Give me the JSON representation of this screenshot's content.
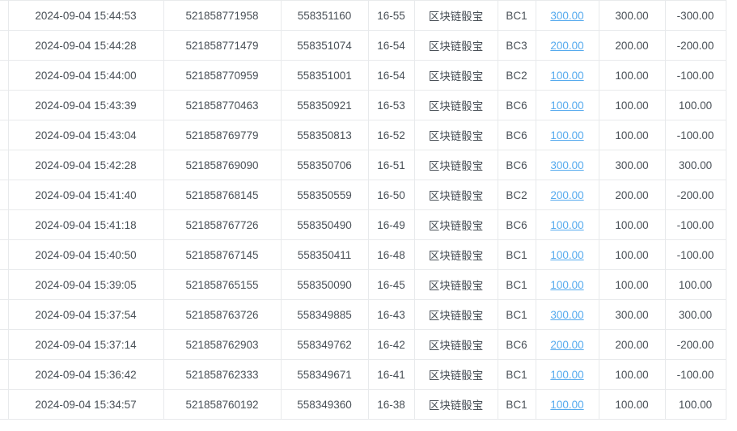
{
  "colors": {
    "link_blue": "#55aaee",
    "loss_red": "#f05a5a",
    "text_dark": "#495057",
    "row_border": "#e8eaec"
  },
  "table": {
    "rows": [
      {
        "time": "2024-09-04 15:44:53",
        "order_number": "521858771958",
        "round_number": "558351160",
        "period": "16-55",
        "game": "区块链骰宝",
        "bet_option": "BC1",
        "bet_amount": "300.00",
        "valid_amount": "300.00",
        "profit": "-300.00",
        "profit_sign": "negative"
      },
      {
        "time": "2024-09-04 15:44:28",
        "order_number": "521858771479",
        "round_number": "558351074",
        "period": "16-54",
        "game": "区块链骰宝",
        "bet_option": "BC3",
        "bet_amount": "200.00",
        "valid_amount": "200.00",
        "profit": "-200.00",
        "profit_sign": "negative"
      },
      {
        "time": "2024-09-04 15:44:00",
        "order_number": "521858770959",
        "round_number": "558351001",
        "period": "16-54",
        "game": "区块链骰宝",
        "bet_option": "BC2",
        "bet_amount": "100.00",
        "valid_amount": "100.00",
        "profit": "-100.00",
        "profit_sign": "negative"
      },
      {
        "time": "2024-09-04 15:43:39",
        "order_number": "521858770463",
        "round_number": "558350921",
        "period": "16-53",
        "game": "区块链骰宝",
        "bet_option": "BC6",
        "bet_amount": "100.00",
        "valid_amount": "100.00",
        "profit": "100.00",
        "profit_sign": "positive"
      },
      {
        "time": "2024-09-04 15:43:04",
        "order_number": "521858769779",
        "round_number": "558350813",
        "period": "16-52",
        "game": "区块链骰宝",
        "bet_option": "BC6",
        "bet_amount": "100.00",
        "valid_amount": "100.00",
        "profit": "-100.00",
        "profit_sign": "negative"
      },
      {
        "time": "2024-09-04 15:42:28",
        "order_number": "521858769090",
        "round_number": "558350706",
        "period": "16-51",
        "game": "区块链骰宝",
        "bet_option": "BC6",
        "bet_amount": "300.00",
        "valid_amount": "300.00",
        "profit": "300.00",
        "profit_sign": "positive"
      },
      {
        "time": "2024-09-04 15:41:40",
        "order_number": "521858768145",
        "round_number": "558350559",
        "period": "16-50",
        "game": "区块链骰宝",
        "bet_option": "BC2",
        "bet_amount": "200.00",
        "valid_amount": "200.00",
        "profit": "-200.00",
        "profit_sign": "negative"
      },
      {
        "time": "2024-09-04 15:41:18",
        "order_number": "521858767726",
        "round_number": "558350490",
        "period": "16-49",
        "game": "区块链骰宝",
        "bet_option": "BC6",
        "bet_amount": "100.00",
        "valid_amount": "100.00",
        "profit": "-100.00",
        "profit_sign": "negative"
      },
      {
        "time": "2024-09-04 15:40:50",
        "order_number": "521858767145",
        "round_number": "558350411",
        "period": "16-48",
        "game": "区块链骰宝",
        "bet_option": "BC1",
        "bet_amount": "100.00",
        "valid_amount": "100.00",
        "profit": "-100.00",
        "profit_sign": "negative"
      },
      {
        "time": "2024-09-04 15:39:05",
        "order_number": "521858765155",
        "round_number": "558350090",
        "period": "16-45",
        "game": "区块链骰宝",
        "bet_option": "BC1",
        "bet_amount": "100.00",
        "valid_amount": "100.00",
        "profit": "100.00",
        "profit_sign": "positive"
      },
      {
        "time": "2024-09-04 15:37:54",
        "order_number": "521858763726",
        "round_number": "558349885",
        "period": "16-43",
        "game": "区块链骰宝",
        "bet_option": "BC1",
        "bet_amount": "300.00",
        "valid_amount": "300.00",
        "profit": "300.00",
        "profit_sign": "positive"
      },
      {
        "time": "2024-09-04 15:37:14",
        "order_number": "521858762903",
        "round_number": "558349762",
        "period": "16-42",
        "game": "区块链骰宝",
        "bet_option": "BC6",
        "bet_amount": "200.00",
        "valid_amount": "200.00",
        "profit": "-200.00",
        "profit_sign": "negative"
      },
      {
        "time": "2024-09-04 15:36:42",
        "order_number": "521858762333",
        "round_number": "558349671",
        "period": "16-41",
        "game": "区块链骰宝",
        "bet_option": "BC1",
        "bet_amount": "100.00",
        "valid_amount": "100.00",
        "profit": "-100.00",
        "profit_sign": "negative"
      },
      {
        "time": "2024-09-04 15:34:57",
        "order_number": "521858760192",
        "round_number": "558349360",
        "period": "16-38",
        "game": "区块链骰宝",
        "bet_option": "BC1",
        "bet_amount": "100.00",
        "valid_amount": "100.00",
        "profit": "100.00",
        "profit_sign": "positive"
      }
    ]
  }
}
